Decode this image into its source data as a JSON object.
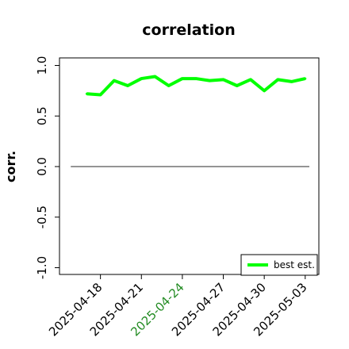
{
  "chart_data": {
    "type": "line",
    "title": "correlation",
    "xlabel": "",
    "ylabel": "corr.",
    "ylim": [
      -1.0,
      1.0
    ],
    "yticks": [
      -1.0,
      -0.5,
      0.0,
      0.5,
      1.0
    ],
    "ytick_labels": [
      "-1.0",
      "-0.5",
      "0.0",
      "0.5",
      "1.0"
    ],
    "xlim": [
      "2025-04-15",
      "2025-05-04"
    ],
    "xticks": [
      "2025-04-18",
      "2025-04-21",
      "2025-04-24",
      "2025-04-27",
      "2025-04-30",
      "2025-05-03"
    ],
    "xtick_labels": [
      "2025-04-18",
      "2025-04-21",
      "2025-04-24",
      "2025-04-27",
      "2025-04-30",
      "2025-05-03"
    ],
    "xtick_colors": [
      "#000000",
      "#000000",
      "#228b22",
      "#000000",
      "#000000",
      "#000000"
    ],
    "reference_line": {
      "y": 0.0,
      "from": "2025-04-16",
      "to": "2025-05-04",
      "color": "#555555"
    },
    "grid": false,
    "legend_position": "lower-right",
    "series": [
      {
        "name": "best est.",
        "color": "#00ff00",
        "x": [
          "2025-04-17",
          "2025-04-18",
          "2025-04-19",
          "2025-04-20",
          "2025-04-21",
          "2025-04-22",
          "2025-04-23",
          "2025-04-24",
          "2025-04-25",
          "2025-04-26",
          "2025-04-27",
          "2025-04-28",
          "2025-04-29",
          "2025-04-30",
          "2025-05-01",
          "2025-05-02",
          "2025-05-03"
        ],
        "y": [
          0.72,
          0.71,
          0.85,
          0.8,
          0.87,
          0.89,
          0.8,
          0.87,
          0.87,
          0.85,
          0.86,
          0.8,
          0.86,
          0.75,
          0.86,
          0.84,
          0.87
        ]
      }
    ]
  }
}
